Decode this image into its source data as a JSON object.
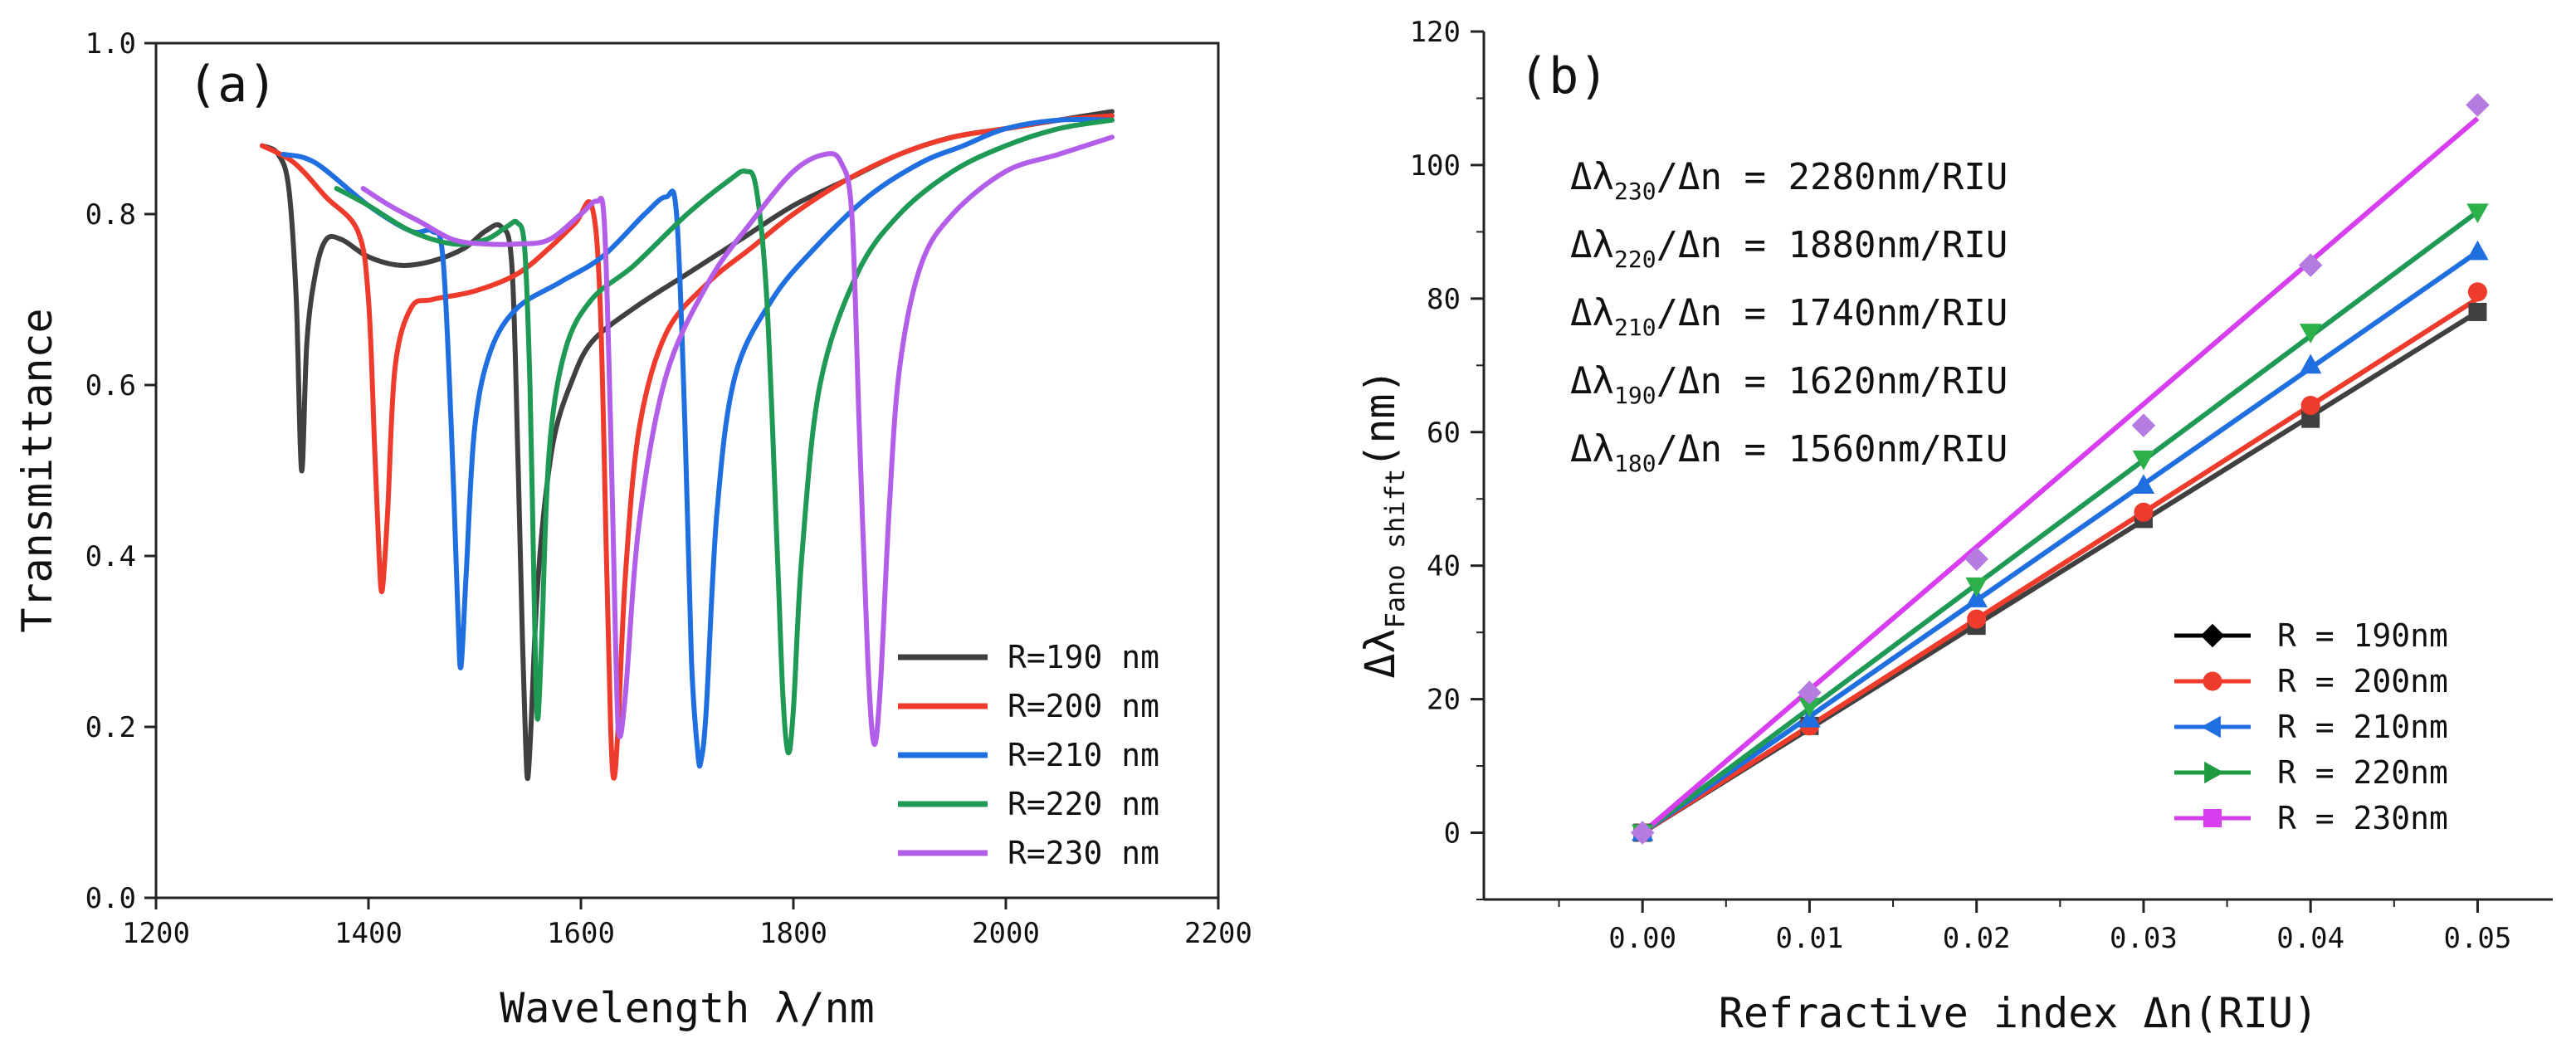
{
  "chart_data": [
    {
      "panel_label": "(a)",
      "type": "line",
      "xlabel": "Wavelength λ/nm",
      "ylabel": "Transmittance",
      "xlim": [
        1200,
        2200
      ],
      "ylim": [
        0.0,
        1.0
      ],
      "x_ticks": [
        "1200",
        "1400",
        "1600",
        "1800",
        "2000",
        "2200"
      ],
      "y_ticks": [
        "0.0",
        "0.2",
        "0.4",
        "0.6",
        "0.8",
        "1.0"
      ],
      "legend_position": "bottom-right",
      "series": [
        {
          "name": "R=190 nm",
          "color": "#404040",
          "x": [
            1300,
            1315,
            1325,
            1332,
            1337,
            1342,
            1350,
            1360,
            1375,
            1400,
            1430,
            1460,
            1490,
            1510,
            1525,
            1535,
            1541,
            1545,
            1548,
            1550,
            1553,
            1558,
            1565,
            1575,
            1590,
            1610,
            1650,
            1700,
            1750,
            1800,
            1850,
            1900,
            1950,
            2000,
            2050,
            2100
          ],
          "y": [
            0.88,
            0.87,
            0.83,
            0.7,
            0.5,
            0.65,
            0.73,
            0.77,
            0.77,
            0.75,
            0.74,
            0.745,
            0.76,
            0.78,
            0.785,
            0.74,
            0.5,
            0.3,
            0.18,
            0.14,
            0.2,
            0.34,
            0.45,
            0.54,
            0.6,
            0.65,
            0.69,
            0.73,
            0.77,
            0.81,
            0.84,
            0.87,
            0.89,
            0.9,
            0.91,
            0.92
          ]
        },
        {
          "name": "R=200 nm",
          "color": "#ef3b2c",
          "x": [
            1300,
            1330,
            1360,
            1390,
            1400,
            1406,
            1410,
            1413,
            1418,
            1425,
            1440,
            1460,
            1500,
            1540,
            1570,
            1595,
            1610,
            1618,
            1624,
            1628,
            1631,
            1635,
            1642,
            1655,
            1680,
            1720,
            1760,
            1800,
            1850,
            1900,
            1950,
            2000,
            2050,
            2100
          ],
          "y": [
            0.88,
            0.86,
            0.82,
            0.78,
            0.7,
            0.52,
            0.4,
            0.36,
            0.45,
            0.62,
            0.69,
            0.7,
            0.71,
            0.73,
            0.76,
            0.79,
            0.81,
            0.7,
            0.4,
            0.2,
            0.14,
            0.2,
            0.38,
            0.55,
            0.66,
            0.72,
            0.76,
            0.8,
            0.84,
            0.87,
            0.89,
            0.9,
            0.91,
            0.915
          ]
        },
        {
          "name": "R=210 nm",
          "color": "#1f6fe0",
          "x": [
            1320,
            1350,
            1400,
            1440,
            1460,
            1470,
            1478,
            1484,
            1487,
            1492,
            1500,
            1515,
            1540,
            1580,
            1620,
            1660,
            1680,
            1690,
            1698,
            1704,
            1710,
            1713,
            1718,
            1728,
            1745,
            1780,
            1820,
            1870,
            1920,
            1960,
            2000,
            2050,
            2100
          ],
          "y": [
            0.87,
            0.86,
            0.81,
            0.78,
            0.78,
            0.75,
            0.55,
            0.34,
            0.27,
            0.38,
            0.55,
            0.64,
            0.69,
            0.72,
            0.75,
            0.8,
            0.82,
            0.8,
            0.55,
            0.28,
            0.17,
            0.16,
            0.22,
            0.45,
            0.61,
            0.7,
            0.76,
            0.82,
            0.86,
            0.88,
            0.9,
            0.91,
            0.91
          ]
        },
        {
          "name": "R=220 nm",
          "color": "#1f9a55",
          "x": [
            1370,
            1400,
            1440,
            1480,
            1510,
            1530,
            1540,
            1547,
            1552,
            1556,
            1559,
            1563,
            1570,
            1585,
            1610,
            1650,
            1700,
            1740,
            1755,
            1765,
            1775,
            1785,
            1790,
            1795,
            1800,
            1808,
            1825,
            1860,
            1900,
            1950,
            2000,
            2050,
            2100
          ],
          "y": [
            0.83,
            0.81,
            0.78,
            0.765,
            0.77,
            0.785,
            0.79,
            0.76,
            0.6,
            0.35,
            0.21,
            0.3,
            0.52,
            0.64,
            0.7,
            0.74,
            0.8,
            0.84,
            0.85,
            0.83,
            0.7,
            0.4,
            0.24,
            0.17,
            0.22,
            0.4,
            0.6,
            0.73,
            0.8,
            0.85,
            0.88,
            0.9,
            0.91
          ]
        },
        {
          "name": "R=230 nm",
          "color": "#b25ee8",
          "x": [
            1395,
            1420,
            1450,
            1480,
            1510,
            1540,
            1570,
            1600,
            1615,
            1622,
            1628,
            1633,
            1636,
            1642,
            1655,
            1680,
            1720,
            1760,
            1800,
            1830,
            1845,
            1855,
            1862,
            1870,
            1876,
            1882,
            1890,
            1900,
            1920,
            1950,
            2000,
            2050,
            2100
          ],
          "y": [
            0.83,
            0.81,
            0.79,
            0.77,
            0.765,
            0.765,
            0.77,
            0.8,
            0.815,
            0.79,
            0.55,
            0.28,
            0.19,
            0.24,
            0.44,
            0.61,
            0.72,
            0.79,
            0.85,
            0.87,
            0.86,
            0.8,
            0.55,
            0.28,
            0.18,
            0.25,
            0.45,
            0.62,
            0.74,
            0.8,
            0.85,
            0.87,
            0.89
          ]
        }
      ]
    },
    {
      "panel_label": "(b)",
      "type": "scatter",
      "xlabel": "Refractive index Δn(RIU)",
      "ylabel_main": "Δλ",
      "ylabel_sub": "Fano shift",
      "ylabel_unit": "(nm)",
      "xlim": [
        -0.0095,
        0.0545
      ],
      "ylim": [
        -10,
        120
      ],
      "x_ticks": [
        "0.00",
        "0.01",
        "0.02",
        "0.03",
        "0.04",
        "0.05"
      ],
      "y_ticks": [
        "0",
        "20",
        "40",
        "60",
        "80",
        "100",
        "120"
      ],
      "legend_position": "bottom-right",
      "annotations": [
        {
          "prefix": "Δλ",
          "sub": "230",
          "suffix": "/Δn = 2280nm/RIU"
        },
        {
          "prefix": "Δλ",
          "sub": "220",
          "suffix": "/Δn = 1880nm/RIU"
        },
        {
          "prefix": "Δλ",
          "sub": "210",
          "suffix": "/Δn = 1740nm/RIU"
        },
        {
          "prefix": "Δλ",
          "sub": "190",
          "suffix": "/Δn = 1620nm/RIU"
        },
        {
          "prefix": "Δλ",
          "sub": "180",
          "suffix": "/Δn = 1560nm/RIU"
        }
      ],
      "x": [
        0.0,
        0.01,
        0.02,
        0.03,
        0.04,
        0.05
      ],
      "series": [
        {
          "name": "R = 190nm",
          "legend_marker": "diamond",
          "point_marker": "square",
          "color": "#404040",
          "line_color": "#404040",
          "legend_color": "#000000",
          "values": [
            0,
            16,
            31,
            47,
            62,
            78
          ],
          "fit": [
            0,
            78
          ]
        },
        {
          "name": "R = 200nm",
          "legend_marker": "circle",
          "point_marker": "circle",
          "color": "#ef3b2c",
          "line_color": "#ef3b2c",
          "legend_color": "#ef3b2c",
          "values": [
            0,
            16,
            32,
            48,
            64,
            81
          ],
          "fit": [
            0,
            80
          ]
        },
        {
          "name": "R = 210nm",
          "legend_marker": "triangle-left",
          "point_marker": "triangle-up",
          "color": "#1f6fe0",
          "line_color": "#1f6fe0",
          "legend_color": "#1f6fe0",
          "values": [
            0,
            17,
            35,
            52,
            70,
            87
          ],
          "fit": [
            0,
            87
          ]
        },
        {
          "name": "R = 220nm",
          "legend_marker": "triangle-right",
          "point_marker": "triangle-down",
          "color": "#2bb04a",
          "line_color": "#1f9a55",
          "legend_color": "#1f9a40",
          "values": [
            0,
            19,
            37,
            56,
            75,
            93
          ],
          "fit": [
            0,
            93
          ]
        },
        {
          "name": "R = 230nm",
          "legend_marker": "square",
          "point_marker": "diamond",
          "color": "#b57be0",
          "line_color": "#d63ef0",
          "legend_color": "#d63ef0",
          "values": [
            0,
            21,
            41,
            61,
            85,
            109
          ],
          "fit": [
            0,
            107
          ]
        }
      ]
    }
  ]
}
